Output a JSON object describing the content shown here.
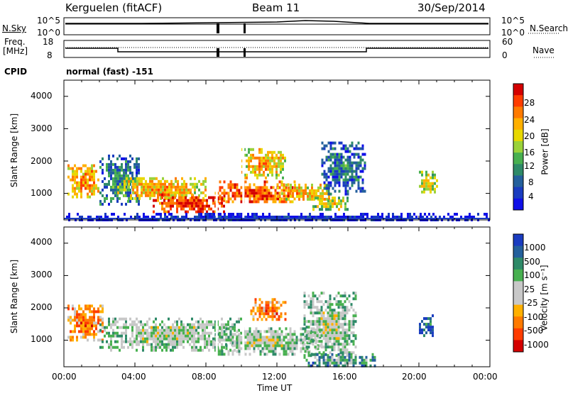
{
  "header": {
    "station": "Kerguelen (fitACF)",
    "beam": "Beam 11",
    "date": "30/Sep/2014"
  },
  "strip_sky": {
    "left_label": "N.Sky",
    "right_label": "N.Search",
    "left_ticks": [
      "10^5",
      "10^0"
    ],
    "right_ticks": [
      "10^5",
      "10^0"
    ]
  },
  "strip_freq": {
    "left_label_1": "Freq.",
    "left_label_2": "[MHz]",
    "right_label": "Nave",
    "left_ticks": [
      "18",
      "8"
    ],
    "right_ticks": [
      "60",
      "0"
    ]
  },
  "cpid": {
    "label": "CPID",
    "value": "normal (fast) -151"
  },
  "chart_data": [
    {
      "type": "heatmap",
      "name": "power-panel",
      "ylabel": "Slant Range [km]",
      "yticks": [
        "4000",
        "3000",
        "2000",
        "1000"
      ],
      "ylim": [
        180,
        4500
      ],
      "xlim": [
        0,
        24
      ],
      "colorbar": {
        "label": "Power [dB]",
        "ticks": [
          "28",
          "24",
          "20",
          "16",
          "12",
          "8",
          "4"
        ],
        "colors": [
          "#d40000",
          "#ff3c00",
          "#ff7a00",
          "#ffb000",
          "#e8d800",
          "#9ad23a",
          "#48b050",
          "#2e8a68",
          "#24609c",
          "#1a3cc0",
          "#1010e8"
        ]
      },
      "regions": [
        {
          "t0": 0.2,
          "t1": 2.0,
          "r0": 900,
          "r1": 1900,
          "level": 0.75
        },
        {
          "t0": 2.0,
          "t1": 4.2,
          "r0": 700,
          "r1": 2200,
          "level": 0.35
        },
        {
          "t0": 3.0,
          "t1": 8.0,
          "r0": 800,
          "r1": 1500,
          "level": 0.7
        },
        {
          "t0": 5.0,
          "t1": 9.0,
          "r0": 400,
          "r1": 1000,
          "level": 0.95
        },
        {
          "t0": 8.5,
          "t1": 13.0,
          "r0": 700,
          "r1": 1400,
          "level": 0.9
        },
        {
          "t0": 10.0,
          "t1": 12.5,
          "r0": 1500,
          "r1": 2400,
          "level": 0.7
        },
        {
          "t0": 12.0,
          "t1": 15.0,
          "r0": 800,
          "r1": 1300,
          "level": 0.7
        },
        {
          "t0": 14.0,
          "t1": 16.0,
          "r0": 500,
          "r1": 900,
          "level": 0.6
        },
        {
          "t0": 14.5,
          "t1": 17.0,
          "r0": 1000,
          "r1": 2600,
          "level": 0.3
        },
        {
          "t0": 20.0,
          "t1": 21.0,
          "r0": 1000,
          "r1": 1700,
          "level": 0.6
        },
        {
          "t0": 0.0,
          "t1": 24.0,
          "r0": 180,
          "r1": 400,
          "level": 0.1
        }
      ]
    },
    {
      "type": "heatmap",
      "name": "velocity-panel",
      "ylabel": "Slant Range [km]",
      "yticks": [
        "4000",
        "3000",
        "2000",
        "1000"
      ],
      "ylim": [
        180,
        4500
      ],
      "xlim": [
        0,
        24
      ],
      "xticks": [
        "00:00",
        "04:00",
        "08:00",
        "12:00",
        "16:00",
        "20:00",
        "00:00"
      ],
      "xlabel": "Time UT",
      "colorbar": {
        "label": "Velocity [m s⁻¹]",
        "ticks": [
          "1000",
          "500",
          "100",
          "25",
          "-25",
          "-100",
          "-500",
          "-1000"
        ],
        "colors": [
          "#1a3cc0",
          "#24609c",
          "#2e8a68",
          "#48b050",
          "#c8c8c8",
          "#c8c8c8",
          "#ffb000",
          "#ff7a00",
          "#ff3c00",
          "#d40000"
        ]
      },
      "regions": [
        {
          "t0": 0.2,
          "t1": 2.2,
          "r0": 1000,
          "r1": 2100,
          "level": 0.8
        },
        {
          "t0": 2.0,
          "t1": 10.0,
          "r0": 700,
          "r1": 1700,
          "level": 0.5
        },
        {
          "t0": 8.5,
          "t1": 14.5,
          "r0": 600,
          "r1": 1400,
          "level": 0.5
        },
        {
          "t0": 10.5,
          "t1": 12.5,
          "r0": 1600,
          "r1": 2300,
          "level": 0.8
        },
        {
          "t0": 13.5,
          "t1": 16.5,
          "r0": 500,
          "r1": 2500,
          "level": 0.5
        },
        {
          "t0": 13.5,
          "t1": 17.5,
          "r0": 200,
          "r1": 600,
          "level": 0.35
        },
        {
          "t0": 20.0,
          "t1": 20.8,
          "r0": 1100,
          "r1": 1800,
          "level": 0.2
        }
      ]
    }
  ]
}
